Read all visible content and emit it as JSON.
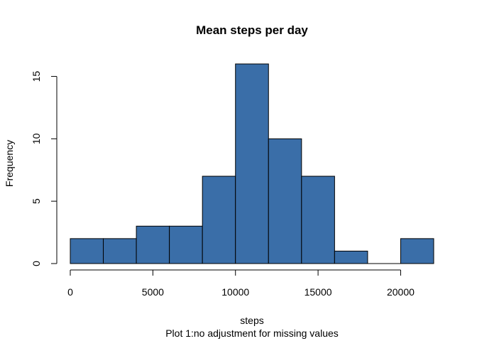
{
  "chart_data": {
    "type": "bar",
    "title": "Mean steps per day",
    "xlabel": "steps",
    "subtitle": "Plot 1:no adjustment for missing values",
    "ylabel": "Frequency",
    "bin_edges": [
      0,
      2000,
      4000,
      6000,
      8000,
      10000,
      12000,
      14000,
      16000,
      18000,
      20000,
      22000
    ],
    "values": [
      2,
      2,
      3,
      3,
      7,
      16,
      10,
      7,
      1,
      0,
      2
    ],
    "xlim": [
      0,
      22000
    ],
    "ylim": [
      0,
      16
    ],
    "x_ticks": [
      0,
      5000,
      10000,
      15000,
      20000
    ],
    "x_tick_labels": [
      "0",
      "5000",
      "10000",
      "15000",
      "20000"
    ],
    "y_ticks": [
      0,
      5,
      10,
      15
    ],
    "y_tick_labels": [
      "0",
      "5",
      "10",
      "15"
    ],
    "bar_color": "#3a6ea8",
    "grid": false,
    "legend": "none"
  }
}
